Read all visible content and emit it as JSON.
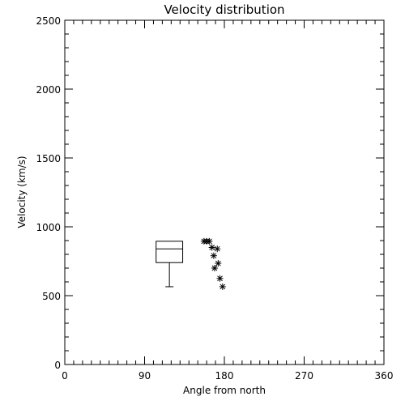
{
  "chart_data": {
    "type": "scatter",
    "title": "Velocity distribution",
    "xlabel": "Angle from north",
    "ylabel": "Velocity (km/s)",
    "xlim": [
      0,
      360
    ],
    "ylim": [
      0,
      2500
    ],
    "xticks": [
      0,
      90,
      180,
      270,
      360
    ],
    "yticks": [
      0,
      500,
      1000,
      1500,
      2000,
      2500
    ],
    "grid": false,
    "boxplot": {
      "x_range": [
        103,
        133
      ],
      "q1": 740,
      "median": 840,
      "q3": 895,
      "whisker_low": 565,
      "whisker_high": 895
    },
    "points": [
      {
        "x": 157,
        "y": 895
      },
      {
        "x": 160,
        "y": 895
      },
      {
        "x": 163,
        "y": 895
      },
      {
        "x": 166,
        "y": 850
      },
      {
        "x": 172,
        "y": 840
      },
      {
        "x": 168,
        "y": 790
      },
      {
        "x": 173,
        "y": 735
      },
      {
        "x": 169,
        "y": 700
      },
      {
        "x": 175,
        "y": 625
      },
      {
        "x": 178,
        "y": 565
      }
    ]
  }
}
